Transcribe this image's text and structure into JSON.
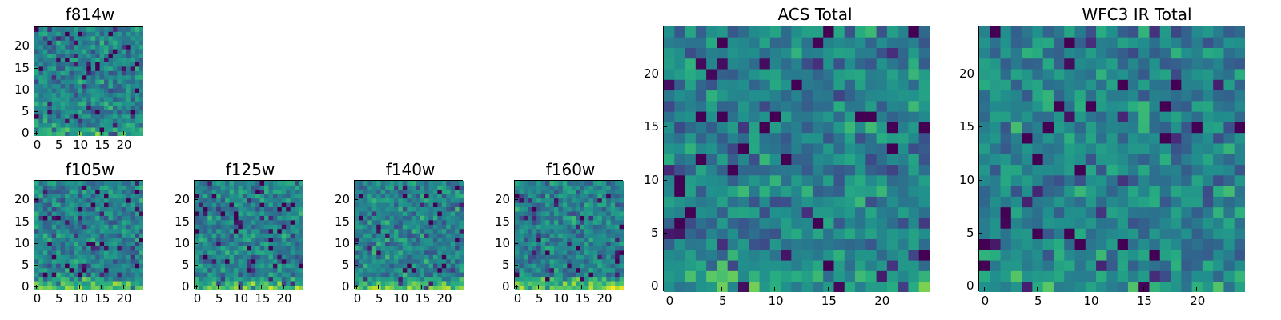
{
  "chart_data": [
    {
      "type": "heatmap",
      "title": "f814w",
      "xticks": [
        "0",
        "5",
        "10",
        "15",
        "20"
      ],
      "yticks": [
        "0",
        "5",
        "10",
        "15",
        "20"
      ],
      "xlim": [
        0,
        25
      ],
      "ylim": [
        0,
        25
      ],
      "colormap": "viridis",
      "bright_bottom": 0.9,
      "seed": 11
    },
    {
      "type": "heatmap",
      "title": "f105w",
      "xticks": [
        "0",
        "5",
        "10",
        "15",
        "20"
      ],
      "yticks": [
        "0",
        "5",
        "10",
        "15",
        "20"
      ],
      "xlim": [
        0,
        25
      ],
      "ylim": [
        0,
        25
      ],
      "colormap": "viridis",
      "bright_bottom": 1.3,
      "seed": 23
    },
    {
      "type": "heatmap",
      "title": "f125w",
      "xticks": [
        "0",
        "5",
        "10",
        "15",
        "20"
      ],
      "yticks": [
        "0",
        "5",
        "10",
        "15",
        "20"
      ],
      "xlim": [
        0,
        25
      ],
      "ylim": [
        0,
        25
      ],
      "colormap": "viridis",
      "bright_bottom": 1.2,
      "seed": 37
    },
    {
      "type": "heatmap",
      "title": "f140w",
      "xticks": [
        "0",
        "5",
        "10",
        "15",
        "20"
      ],
      "yticks": [
        "0",
        "5",
        "10",
        "15",
        "20"
      ],
      "xlim": [
        0,
        25
      ],
      "ylim": [
        0,
        25
      ],
      "colormap": "viridis",
      "bright_bottom": 1.2,
      "seed": 41
    },
    {
      "type": "heatmap",
      "title": "f160w",
      "xticks": [
        "0",
        "5",
        "10",
        "15",
        "20"
      ],
      "yticks": [
        "0",
        "5",
        "10",
        "15",
        "20"
      ],
      "xlim": [
        0,
        25
      ],
      "ylim": [
        0,
        25
      ],
      "colormap": "viridis",
      "bright_bottom": 1.5,
      "seed": 53
    },
    {
      "type": "heatmap",
      "title": "ACS Total",
      "xticks": [
        "0",
        "5",
        "10",
        "15",
        "20"
      ],
      "yticks": [
        "0",
        "5",
        "10",
        "15",
        "20"
      ],
      "xlim": [
        0,
        25
      ],
      "ylim": [
        0,
        25
      ],
      "colormap": "viridis",
      "bright_bottom": 0.6,
      "seed": 67
    },
    {
      "type": "heatmap",
      "title": "WFC3 IR Total",
      "xticks": [
        "0",
        "5",
        "10",
        "15",
        "20"
      ],
      "yticks": [
        "0",
        "5",
        "10",
        "15",
        "20"
      ],
      "xlim": [
        0,
        25
      ],
      "ylim": [
        0,
        25
      ],
      "colormap": "viridis",
      "bright_bottom": 0.5,
      "seed": 79
    }
  ]
}
